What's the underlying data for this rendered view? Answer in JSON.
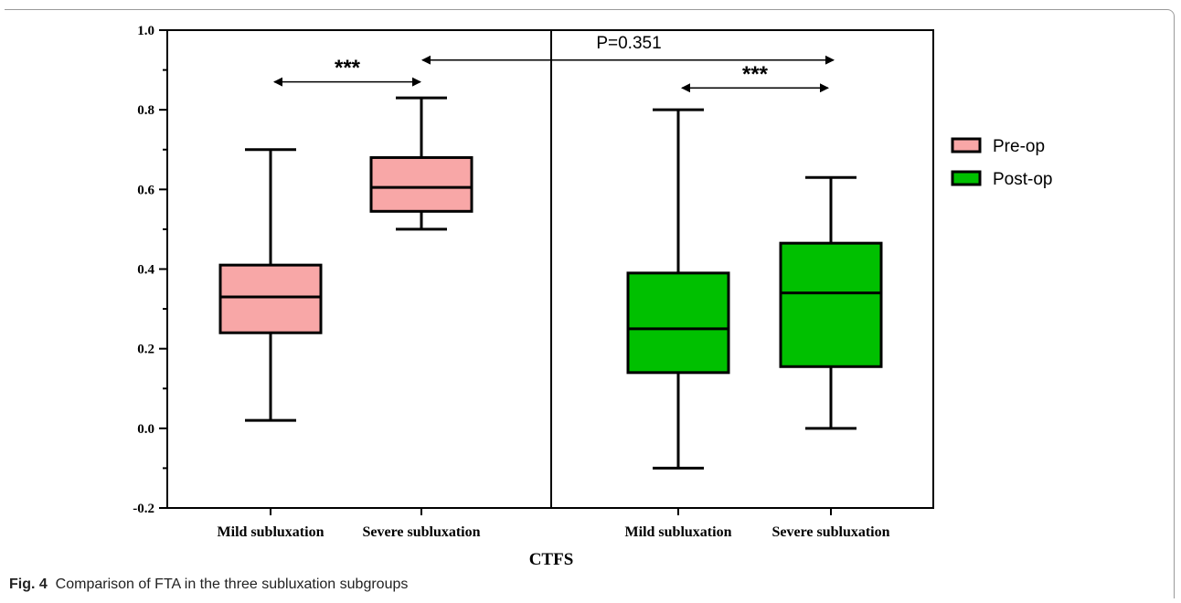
{
  "caption": {
    "label": "Fig. 4",
    "text": "Comparison of FTA in the three subluxation subgroups"
  },
  "colors": {
    "pre_op": "#f8a7a7",
    "post_op": "#00c000",
    "stroke": "#000000"
  },
  "chart_data": {
    "type": "box",
    "xlabel": "CTFS",
    "ylabel": "",
    "ylim": [
      -0.2,
      1.0
    ],
    "yticks": [
      "-0.2",
      "0.0",
      "0.2",
      "0.4",
      "0.6",
      "0.8",
      "1.0"
    ],
    "ytick_values": [
      -0.2,
      0.0,
      0.2,
      0.4,
      0.6,
      0.8,
      1.0
    ],
    "legend": {
      "position": "right",
      "entries": [
        "Pre-op",
        "Post-op"
      ]
    },
    "panels": [
      {
        "series": "Pre-op",
        "categories": [
          "Mild subluxation",
          "Severe subluxation"
        ],
        "boxes": [
          {
            "min": 0.02,
            "q1": 0.24,
            "median": 0.33,
            "q3": 0.41,
            "max": 0.7
          },
          {
            "min": 0.5,
            "q1": 0.545,
            "median": 0.605,
            "q3": 0.68,
            "max": 0.83
          }
        ]
      },
      {
        "series": "Post-op",
        "categories": [
          "Mild subluxation",
          "Severe subluxation"
        ],
        "boxes": [
          {
            "min": -0.1,
            "q1": 0.14,
            "median": 0.25,
            "q3": 0.39,
            "max": 0.8
          },
          {
            "min": 0.0,
            "q1": 0.155,
            "median": 0.34,
            "q3": 0.465,
            "max": 0.63
          }
        ]
      }
    ],
    "annotations": [
      {
        "text": "***",
        "from": "Pre-op Mild subluxation",
        "to": "Pre-op Severe subluxation",
        "y": 0.87
      },
      {
        "text": "P=0.351",
        "from": "Pre-op Severe subluxation",
        "to": "Post-op Severe subluxation",
        "y": 0.925
      },
      {
        "text": "***",
        "from": "Post-op Mild subluxation",
        "to": "Post-op Severe subluxation",
        "y": 0.855
      }
    ]
  }
}
